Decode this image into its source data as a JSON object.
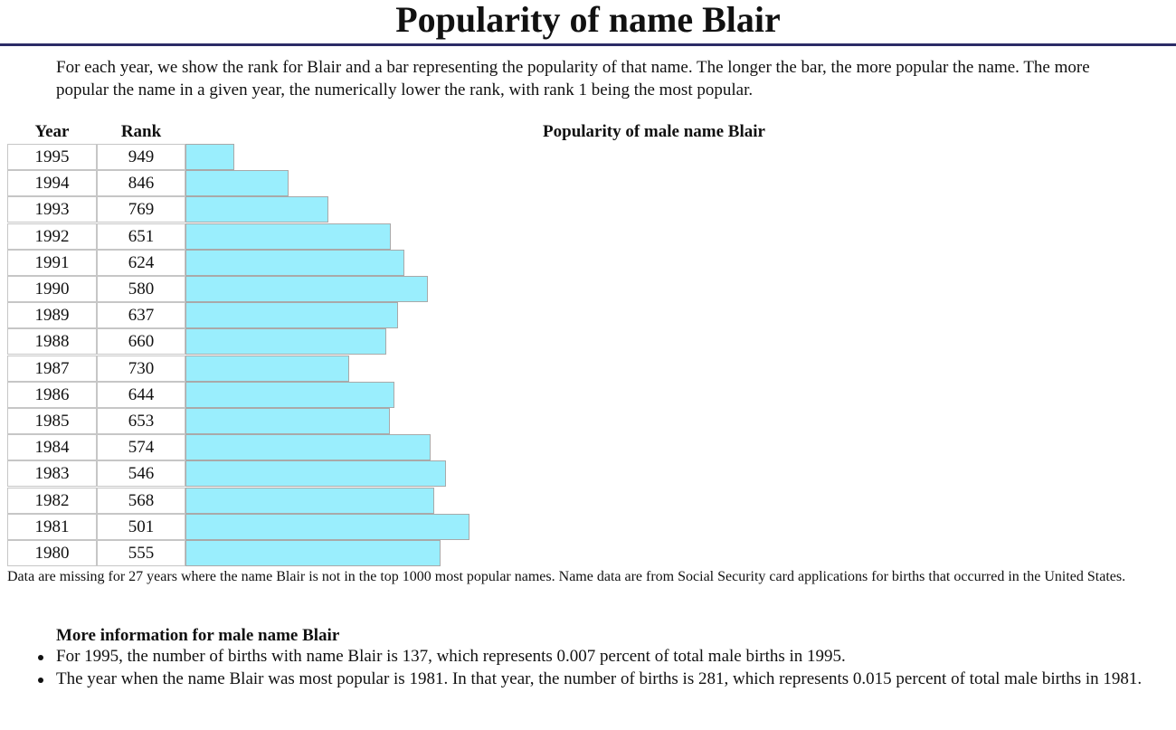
{
  "page": {
    "title": "Popularity of name Blair",
    "intro": "For each year, we show the rank for Blair and a bar representing the popularity of that name. The longer the bar, the more popular the name. The more popular the name in a given year, the numerically lower the rank, with rank 1 being the most popular.",
    "rule_color": "#2b2b66"
  },
  "table": {
    "year_header": "Year",
    "rank_header": "Rank"
  },
  "chart_data": {
    "type": "bar",
    "orientation": "horizontal",
    "title": "Popularity of male name Blair",
    "bar_color": "#9aeefd",
    "categories": [
      "1995",
      "1994",
      "1993",
      "1992",
      "1991",
      "1990",
      "1989",
      "1988",
      "1987",
      "1986",
      "1985",
      "1984",
      "1983",
      "1982",
      "1981",
      "1980"
    ],
    "values": [
      949,
      846,
      769,
      651,
      624,
      580,
      637,
      660,
      730,
      644,
      653,
      574,
      546,
      568,
      501,
      555
    ],
    "value_meaning": "rank (lower rank = longer bar)",
    "grid": false
  },
  "footnote": "Data are missing for 27 years where the name Blair is not in the top 1000 most popular names. Name data are from Social Security card applications for births that occurred in the United States.",
  "more_info": {
    "heading": "More information for male name Blair",
    "items": [
      "For 1995, the number of births with name Blair is 137, which represents 0.007 percent of total male births in 1995.",
      "The year when the name Blair was most popular is 1981. In that year, the number of births is 281, which represents 0.015 percent of total male births in 1981."
    ]
  }
}
